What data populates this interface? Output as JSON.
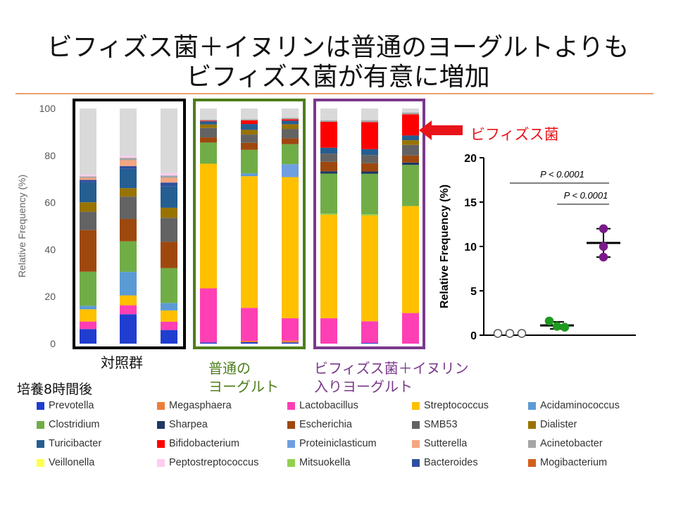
{
  "title": {
    "line1": "ビフィズス菌＋イヌリンは普通のヨーグルトよりも",
    "line2": "ビフィズス菌が有意に増加"
  },
  "labels": {
    "control": "対照群",
    "plain_line1": "普通の",
    "plain_line2": "ヨーグルト",
    "bifido_line1": "ビフィズス菌＋イヌリン",
    "bifido_line2": "入りヨーグルト",
    "callout": "ビフィズス菌",
    "culture_time": "培養8時間後"
  },
  "colors": {
    "control_box": "#000000",
    "plain_box": "#4e7e1c",
    "bifido_box": "#7a3a8a",
    "accent_red": "#e8141a",
    "rule": "#e8a070"
  },
  "legend": [
    {
      "name": "Prevotella",
      "color": "#1f3ecf"
    },
    {
      "name": "Megasphaera",
      "color": "#ee7d3a"
    },
    {
      "name": "Lactobacillus",
      "color": "#ff3fb4"
    },
    {
      "name": "Streptococcus",
      "color": "#ffc000"
    },
    {
      "name": "Acidaminococcus",
      "color": "#5b9bd5"
    },
    {
      "name": "Clostridium",
      "color": "#70ad47"
    },
    {
      "name": "Sharpea",
      "color": "#1f3864"
    },
    {
      "name": "Escherichia",
      "color": "#9e480e"
    },
    {
      "name": "SMB53",
      "color": "#636363"
    },
    {
      "name": "Dialister",
      "color": "#997300"
    },
    {
      "name": "Turicibacter",
      "color": "#255e91"
    },
    {
      "name": "Bifidobacterium",
      "color": "#ff0000"
    },
    {
      "name": "Proteiniclasticum",
      "color": "#6f9fe0"
    },
    {
      "name": "Sutterella",
      "color": "#f4a582"
    },
    {
      "name": "Acinetobacter",
      "color": "#a5a5a5"
    },
    {
      "name": "Veillonella",
      "color": "#ffff4d"
    },
    {
      "name": "Peptostreptococcus",
      "color": "#ffccf2"
    },
    {
      "name": "Mitsuokella",
      "color": "#92d050"
    },
    {
      "name": "Bacteroides",
      "color": "#2f4f9f"
    },
    {
      "name": "Mogibacterium",
      "color": "#d35f1b"
    }
  ],
  "chart_data": [
    {
      "type": "bar",
      "stacked": true,
      "ylabel": "Relative Frequency (%)",
      "ylim": [
        0,
        100
      ],
      "yticks": [
        0,
        20,
        40,
        60,
        80,
        100
      ],
      "other_color": "#d9d9d9",
      "groups": [
        {
          "label": "対照群",
          "samples": [
            {
              "segments": [
                [
                  "Prevotella",
                  6.2
                ],
                [
                  "Lactobacillus",
                  3.2
                ],
                [
                  "Streptococcus",
                  5.2
                ],
                [
                  "Acidaminococcus",
                  1.5
                ],
                [
                  "Clostridium",
                  14.5
                ],
                [
                  "Escherichia",
                  17.7
                ],
                [
                  "SMB53",
                  7.8
                ],
                [
                  "Dialister",
                  4.0
                ],
                [
                  "Turicibacter",
                  8.5
                ],
                [
                  "Bacteroides",
                  1.0
                ],
                [
                  "Sutterella",
                  0.9
                ],
                [
                  "Acinetobacter",
                  0.6
                ],
                [
                  "Peptostreptococcus",
                  0.6
                ]
              ]
            },
            {
              "segments": [
                [
                  "Prevotella",
                  12.5
                ],
                [
                  "Lactobacillus",
                  3.8
                ],
                [
                  "Streptococcus",
                  4.2
                ],
                [
                  "Acidaminococcus",
                  10.0
                ],
                [
                  "Clostridium",
                  13.0
                ],
                [
                  "Escherichia",
                  9.5
                ],
                [
                  "SMB53",
                  9.5
                ],
                [
                  "Dialister",
                  3.6
                ],
                [
                  "Turicibacter",
                  8.2
                ],
                [
                  "Bacteroides",
                  1.2
                ],
                [
                  "Sutterella",
                  2.5
                ],
                [
                  "Acinetobacter",
                  1.0
                ],
                [
                  "Peptostreptococcus",
                  0.8
                ]
              ]
            },
            {
              "segments": [
                [
                  "Prevotella",
                  5.8
                ],
                [
                  "Lactobacillus",
                  3.5
                ],
                [
                  "Streptococcus",
                  4.8
                ],
                [
                  "Acidaminococcus",
                  3.2
                ],
                [
                  "Clostridium",
                  14.8
                ],
                [
                  "Escherichia",
                  11.2
                ],
                [
                  "SMB53",
                  10.2
                ],
                [
                  "Dialister",
                  4.3
                ],
                [
                  "Turicibacter",
                  9.2
                ],
                [
                  "Bacteroides",
                  1.5
                ],
                [
                  "Sutterella",
                  2.0
                ],
                [
                  "Acinetobacter",
                  1.0
                ],
                [
                  "Peptostreptococcus",
                  1.0
                ]
              ]
            }
          ]
        },
        {
          "label": "普通のヨーグルト",
          "samples": [
            {
              "segments": [
                [
                  "Prevotella",
                  0.5
                ],
                [
                  "Lactobacillus",
                  23.0
                ],
                [
                  "Streptococcus",
                  53.0
                ],
                [
                  "Clostridium",
                  9.0
                ],
                [
                  "Escherichia",
                  2.2
                ],
                [
                  "SMB53",
                  4.0
                ],
                [
                  "Dialister",
                  1.5
                ],
                [
                  "Turicibacter",
                  1.3
                ],
                [
                  "Bifidobacterium",
                  0.3
                ],
                [
                  "Acinetobacter",
                  0.4
                ]
              ]
            },
            {
              "segments": [
                [
                  "Prevotella",
                  0.6
                ],
                [
                  "Megasphaera",
                  0.6
                ],
                [
                  "Lactobacillus",
                  14.0
                ],
                [
                  "Streptococcus",
                  56.0
                ],
                [
                  "Acidaminococcus",
                  1.2
                ],
                [
                  "Clostridium",
                  10.0
                ],
                [
                  "Escherichia",
                  3.0
                ],
                [
                  "SMB53",
                  3.5
                ],
                [
                  "Dialister",
                  2.0
                ],
                [
                  "Turicibacter",
                  2.5
                ],
                [
                  "Bifidobacterium",
                  1.5
                ],
                [
                  "Acinetobacter",
                  0.5
                ]
              ]
            },
            {
              "segments": [
                [
                  "Prevotella",
                  0.5
                ],
                [
                  "Megasphaera",
                  0.8
                ],
                [
                  "Lactobacillus",
                  9.5
                ],
                [
                  "Streptococcus",
                  60.0
                ],
                [
                  "Proteiniclasticum",
                  5.5
                ],
                [
                  "Clostridium",
                  8.5
                ],
                [
                  "Escherichia",
                  2.5
                ],
                [
                  "SMB53",
                  4.0
                ],
                [
                  "Dialister",
                  2.0
                ],
                [
                  "Turicibacter",
                  1.5
                ],
                [
                  "Bifidobacterium",
                  0.6
                ],
                [
                  "Acinetobacter",
                  0.6
                ]
              ]
            }
          ]
        },
        {
          "label": "ビフィズス菌＋イヌリン入りヨーグルト",
          "samples": [
            {
              "segments": [
                [
                  "Lactobacillus",
                  10.8
                ],
                [
                  "Streptococcus",
                  44.0
                ],
                [
                  "Mitsuokella",
                  0.5
                ],
                [
                  "Clostridium",
                  17.0
                ],
                [
                  "Sharpea",
                  1.0
                ],
                [
                  "Escherichia",
                  4.0
                ],
                [
                  "SMB53",
                  3.5
                ],
                [
                  "Turicibacter",
                  2.5
                ],
                [
                  "Bifidobacterium",
                  11.0
                ],
                [
                  "Acinetobacter",
                  0.7
                ]
              ]
            },
            {
              "segments": [
                [
                  "Prevotella",
                  0.3
                ],
                [
                  "Lactobacillus",
                  9.2
                ],
                [
                  "Streptococcus",
                  45.0
                ],
                [
                  "Mitsuokella",
                  0.5
                ],
                [
                  "Clostridium",
                  17.2
                ],
                [
                  "Sharpea",
                  1.0
                ],
                [
                  "Escherichia",
                  3.5
                ],
                [
                  "SMB53",
                  3.5
                ],
                [
                  "Turicibacter",
                  2.5
                ],
                [
                  "Bifidobacterium",
                  11.5
                ],
                [
                  "Acinetobacter",
                  0.8
                ]
              ]
            },
            {
              "segments": [
                [
                  "Lactobacillus",
                  13.0
                ],
                [
                  "Streptococcus",
                  45.5
                ],
                [
                  "Clostridium",
                  17.5
                ],
                [
                  "Sharpea",
                  1.0
                ],
                [
                  "Escherichia",
                  3.0
                ],
                [
                  "SMB53",
                  4.5
                ],
                [
                  "Dialister",
                  2.0
                ],
                [
                  "Turicibacter",
                  2.0
                ],
                [
                  "Bifidobacterium",
                  9.0
                ],
                [
                  "Acinetobacter",
                  0.8
                ]
              ]
            }
          ]
        }
      ]
    },
    {
      "type": "scatter",
      "ylabel": "Relative Frequency (%)",
      "ylim": [
        0,
        20
      ],
      "yticks": [
        0,
        5,
        10,
        15,
        20
      ],
      "groups": [
        {
          "name": "対照群",
          "color": "#ffffff",
          "stroke": "#555555",
          "points": [
            0.2,
            0.2,
            0.2
          ],
          "mean": null
        },
        {
          "name": "普通のヨーグルト",
          "color": "#1e9a1e",
          "stroke": "#1e9a1e",
          "points": [
            1.6,
            0.9,
            1.0
          ],
          "mean": 1.1,
          "sd": 0.4
        },
        {
          "name": "ビフィズス菌＋イヌリン入りヨーグルト",
          "color": "#7a1a8a",
          "stroke": "#7a1a8a",
          "points": [
            12.0,
            10.0,
            8.8
          ],
          "mean": 10.4,
          "sd": 1.6
        }
      ],
      "significance": [
        {
          "from": 0,
          "to": 2,
          "label": "P < 0.0001"
        },
        {
          "from": 1,
          "to": 2,
          "label": "P < 0.0001"
        }
      ]
    }
  ]
}
